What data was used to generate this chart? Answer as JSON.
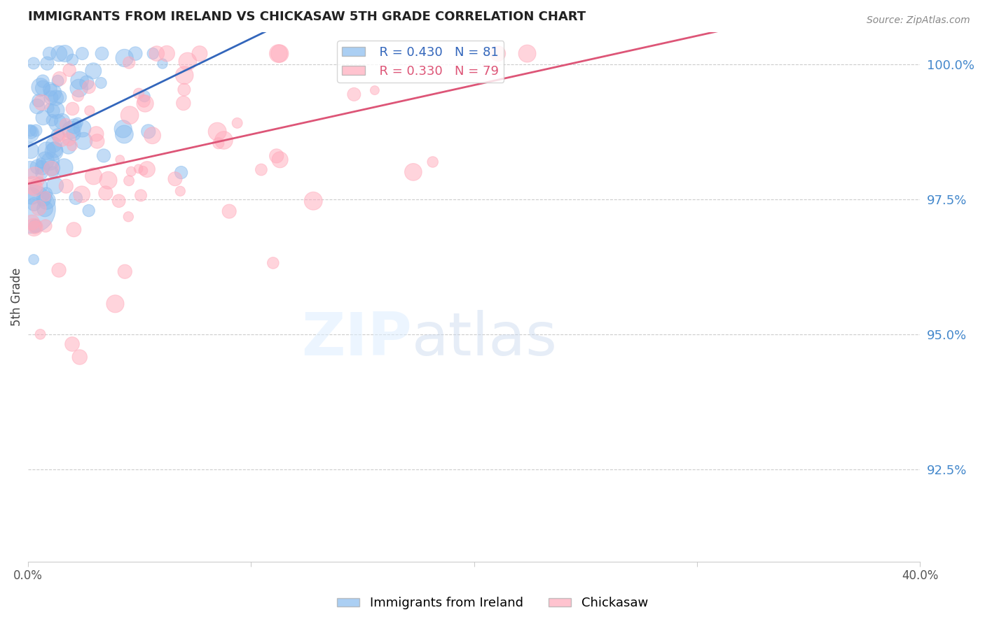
{
  "title": "IMMIGRANTS FROM IRELAND VS CHICKASAW 5TH GRADE CORRELATION CHART",
  "source": "Source: ZipAtlas.com",
  "ylabel": "5th Grade",
  "ytick_labels": [
    "100.0%",
    "97.5%",
    "95.0%",
    "92.5%"
  ],
  "ytick_values": [
    1.0,
    0.975,
    0.95,
    0.925
  ],
  "xlim": [
    0.0,
    0.4
  ],
  "ylim": [
    0.908,
    1.006
  ],
  "blue_color": "#88BBEE",
  "pink_color": "#FFAABB",
  "blue_line_color": "#3366BB",
  "pink_line_color": "#DD5577",
  "legend_r_blue": "R = 0.430",
  "legend_n_blue": "N = 81",
  "legend_r_pink": "R = 0.330",
  "legend_n_pink": "N = 79",
  "blue_R": 0.43,
  "blue_N": 81,
  "pink_R": 0.33,
  "pink_N": 79,
  "ytick_color": "#4488CC",
  "title_color": "#222222",
  "source_color": "#888888"
}
